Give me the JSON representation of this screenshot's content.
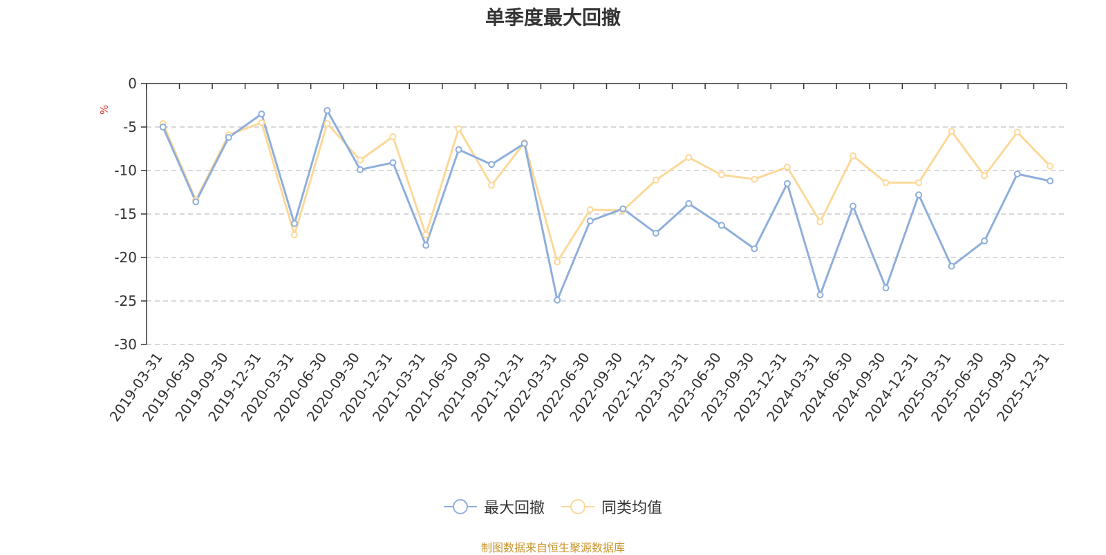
{
  "chart_data": {
    "type": "line",
    "title": "单季度最大回撤",
    "ylabel": "%",
    "ylim": [
      -30,
      0
    ],
    "yticks": [
      0,
      -5,
      -10,
      -15,
      -20,
      -25,
      -30
    ],
    "grid": true,
    "legend_position": "bottom-center",
    "categories": [
      "2019-03-31",
      "2019-06-30",
      "2019-09-30",
      "2019-12-31",
      "2020-03-31",
      "2020-06-30",
      "2020-09-30",
      "2020-12-31",
      "2021-03-31",
      "2021-06-30",
      "2021-09-30",
      "2021-12-31",
      "2022-03-31",
      "2022-06-30",
      "2022-09-30",
      "2022-12-31",
      "2023-03-31",
      "2023-06-30",
      "2023-09-30",
      "2023-12-31",
      "2024-03-31",
      "2024-06-30",
      "2024-09-30",
      "2024-12-31",
      "2025-03-31",
      "2025-06-30",
      "2025-09-30",
      "2025-12-31"
    ],
    "series": [
      {
        "name": "最大回撤",
        "color": "#8eaedb",
        "values": [
          -5.0,
          -13.6,
          -6.2,
          -3.5,
          -16.1,
          -3.1,
          -9.9,
          -9.1,
          -18.6,
          -7.6,
          -9.3,
          -6.9,
          -24.9,
          -15.8,
          -14.4,
          -17.2,
          -13.8,
          -16.3,
          -19.0,
          -11.5,
          -24.3,
          -14.1,
          -23.5,
          -12.8,
          -21.0,
          -18.1,
          -10.4,
          -11.2
        ]
      },
      {
        "name": "同类均值",
        "color": "#fcd898",
        "values": [
          -4.6,
          -13.4,
          -5.9,
          -4.5,
          -17.4,
          -4.6,
          -8.8,
          -6.1,
          -17.4,
          -5.2,
          -11.7,
          -6.8,
          -20.5,
          -14.5,
          -14.6,
          -11.1,
          -8.5,
          -10.5,
          -11.0,
          -9.6,
          -15.9,
          -8.3,
          -11.4,
          -11.4,
          -5.5,
          -10.6,
          -5.6,
          -9.5
        ]
      }
    ]
  },
  "source_text": "制图数据来自恒生聚源数据库"
}
